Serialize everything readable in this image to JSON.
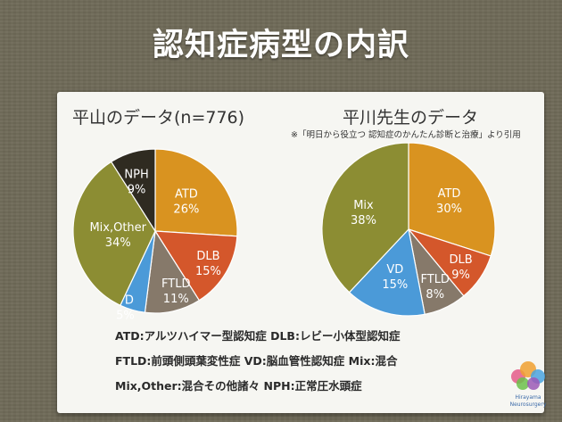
{
  "slide": {
    "title": "認知症病型の内訳"
  },
  "chart_data": [
    {
      "type": "pie",
      "title": "平山のデータ(n=776)",
      "slices": [
        {
          "label": "ATD",
          "value": 26,
          "text": "26%",
          "color": "#d99320"
        },
        {
          "label": "DLB",
          "value": 15,
          "text": "15%",
          "color": "#d4572b"
        },
        {
          "label": "FTLD",
          "value": 11,
          "text": "11%",
          "color": "#86796a"
        },
        {
          "label": "VD",
          "value": 5,
          "text": "5%",
          "color": "#4b9ad8"
        },
        {
          "label": "Mix,Other",
          "value": 34,
          "text": "34%",
          "color": "#8c8d33"
        },
        {
          "label": "NPH",
          "value": 9,
          "text": "9%",
          "color": "#2f2b21"
        }
      ]
    },
    {
      "type": "pie",
      "title": "平川先生のデータ",
      "note": "※「明日から役立つ 認知症のかんたん診断と治療」より引用",
      "slices": [
        {
          "label": "ATD",
          "value": 30,
          "text": "30%",
          "color": "#d99320"
        },
        {
          "label": "DLB",
          "value": 9,
          "text": "9%",
          "color": "#d4572b"
        },
        {
          "label": "FTLD",
          "value": 8,
          "text": "8%",
          "color": "#86796a"
        },
        {
          "label": "VD",
          "value": 15,
          "text": "15%",
          "color": "#4b9ad8"
        },
        {
          "label": "Mix",
          "value": 38,
          "text": "38%",
          "color": "#8c8d33"
        }
      ]
    }
  ],
  "legend": [
    "ATD:アルツハイマー型認知症 DLB:レビー小体型認知症",
    "FTLD:前頭側頭葉変性症 VD:脳血管性認知症 Mix:混合",
    "Mix,Other:混合その他諸々 NPH:正常圧水頭症"
  ],
  "logo": {
    "line1": "Hirayama",
    "line2": "Neurosurgery",
    "colors": [
      "#e45b8a",
      "#f0a030",
      "#4aa3df",
      "#6cc04a",
      "#9b59b6"
    ]
  }
}
